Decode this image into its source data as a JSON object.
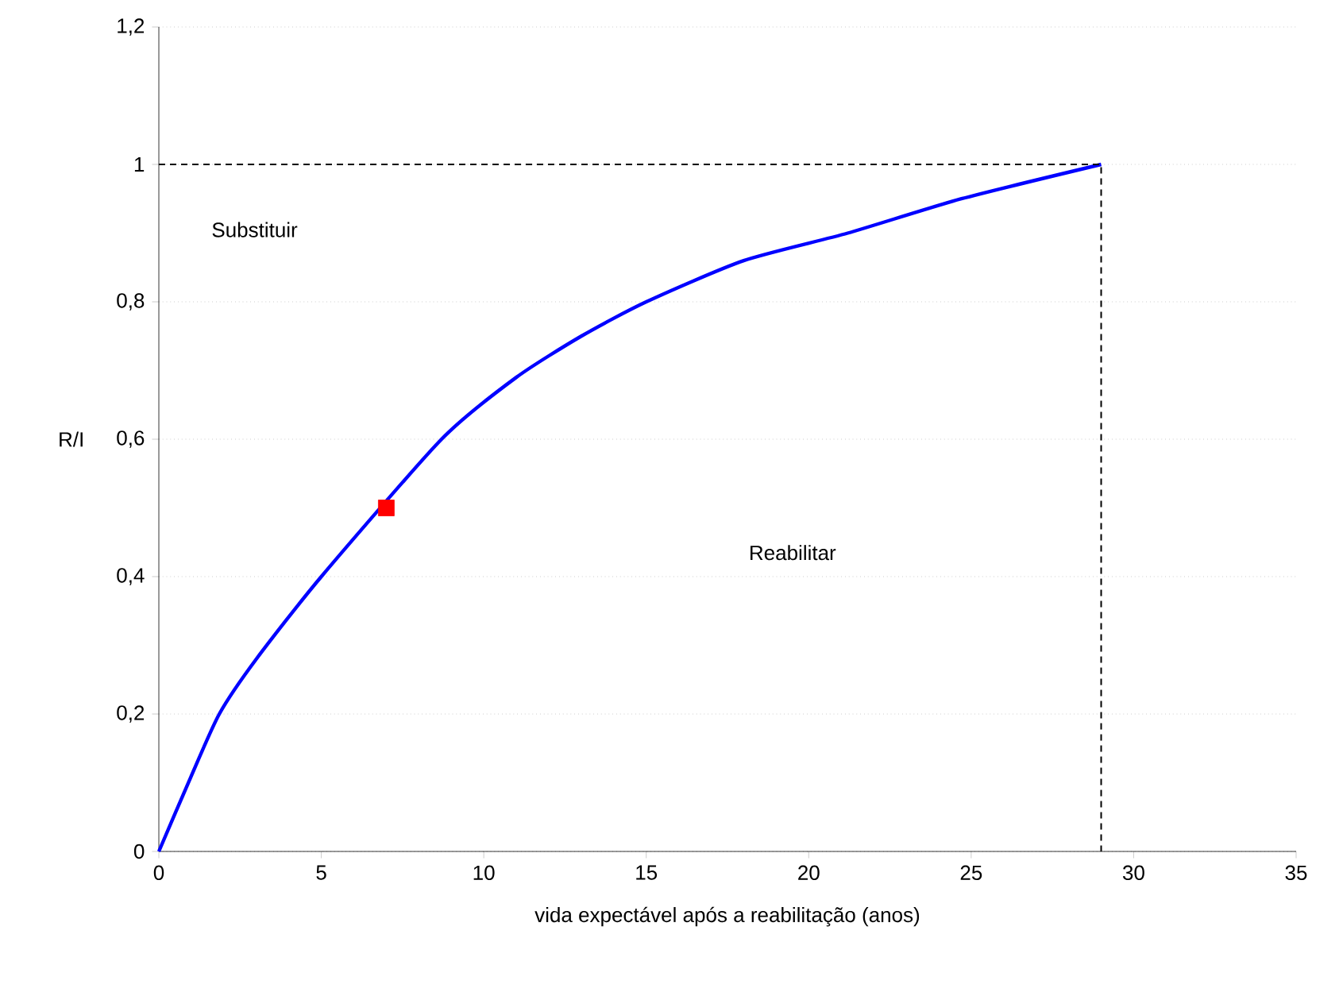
{
  "chart_data": {
    "type": "line",
    "xlabel": "vida expectável após a reabilitação (anos)",
    "ylabel": "R/I",
    "xlim": [
      0,
      35
    ],
    "xticks": [
      0,
      5,
      10,
      15,
      20,
      25,
      30,
      35
    ],
    "ylim": [
      0,
      1.2
    ],
    "yticks": [
      {
        "value": 0,
        "label": "0"
      },
      {
        "value": 0.2,
        "label": "0,2"
      },
      {
        "value": 0.4,
        "label": "0,4"
      },
      {
        "value": 0.6,
        "label": "0,6"
      },
      {
        "value": 0.8,
        "label": "0,8"
      },
      {
        "value": 1,
        "label": "1"
      },
      {
        "value": 1.2,
        "label": "1,2"
      }
    ],
    "grid": "y",
    "legend": false,
    "series": [
      {
        "color": "#0000ff",
        "marker": "none",
        "line_style": "solid",
        "x": [
          0,
          1,
          1.86,
          3,
          5,
          8.7,
          11,
          13,
          15,
          18,
          21.2,
          24.7,
          29
        ],
        "values": [
          0,
          0.11,
          0.2,
          0.28,
          0.4,
          0.6,
          0.69,
          0.75,
          0.8,
          0.86,
          0.9,
          0.95,
          1
        ]
      },
      {
        "type": "line",
        "color": "#000000",
        "marker": "none",
        "line_style": "dashed",
        "x": [
          0,
          29,
          29
        ],
        "values": [
          1,
          1,
          0
        ]
      },
      {
        "type": "scatter",
        "color": "#ff0000",
        "marker": "square",
        "x": [
          7
        ],
        "values": [
          0.5
        ]
      }
    ],
    "annotations": [
      "Substituir",
      "Reabilitar"
    ]
  }
}
